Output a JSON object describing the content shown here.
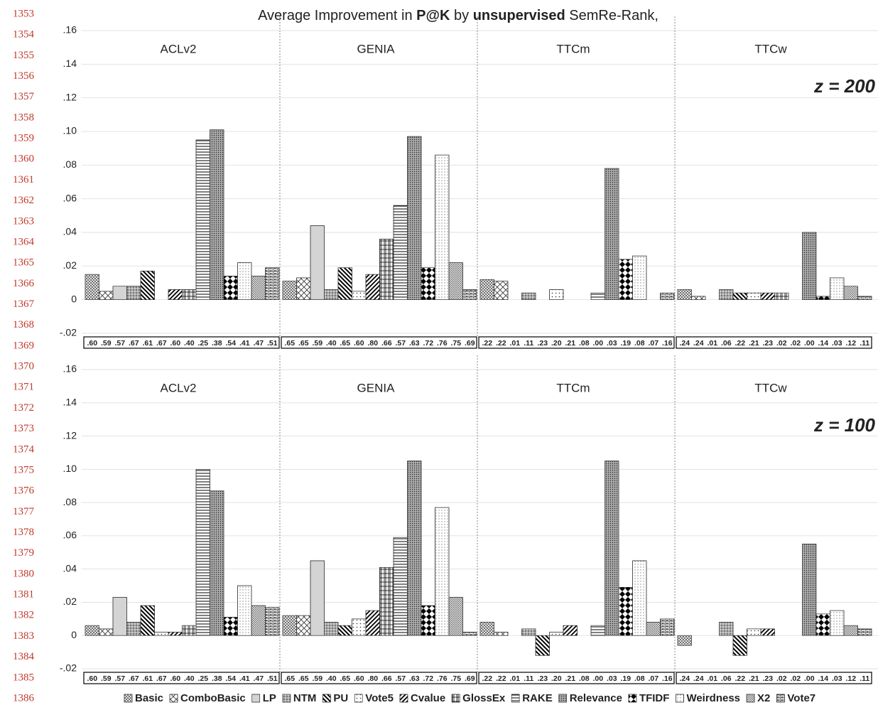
{
  "line_numbers": [
    1353,
    1354,
    1355,
    1356,
    1357,
    1358,
    1359,
    1360,
    1361,
    1362,
    1363,
    1364,
    1365,
    1366,
    1367,
    1368,
    1369,
    1370,
    1371,
    1372,
    1373,
    1374,
    1375,
    1376,
    1377,
    1378,
    1379,
    1380,
    1381,
    1382,
    1383,
    1384,
    1385,
    1386
  ],
  "chart_data": [
    {
      "type": "bar",
      "title": [
        "Average Improvement in ",
        "P@K",
        " by ",
        "unsupervised",
        " SemRe-Rank,"
      ],
      "subtitle": "z = 200",
      "categories": [
        "ACLv2",
        "GENIA",
        "TTCm",
        "TTCw"
      ],
      "series": [
        {
          "name": "Basic",
          "color": "#ffffff",
          "values": [
            0.015,
            0.011,
            0.012,
            0.006
          ]
        },
        {
          "name": "ComboBasic",
          "color": "#ffffff",
          "values": [
            0.005,
            0.013,
            0.011,
            0.002
          ]
        },
        {
          "name": "LP",
          "color": "#d4d4d4",
          "values": [
            0.008,
            0.044,
            0,
            0
          ]
        },
        {
          "name": "NTM",
          "color": "#ffffff",
          "values": [
            0.008,
            0.006,
            0.004,
            0.006
          ]
        },
        {
          "name": "PU",
          "color": "#ffffff",
          "values": [
            0.017,
            0.019,
            0,
            0.004
          ]
        },
        {
          "name": "Vote5",
          "color": "#ffffff",
          "values": [
            0,
            0.005,
            0.006,
            0.004
          ]
        },
        {
          "name": "Cvalue",
          "color": "#ffffff",
          "values": [
            0.006,
            0.015,
            0,
            0.004
          ]
        },
        {
          "name": "GlossEx",
          "color": "#ffffff",
          "values": [
            0.006,
            0.036,
            0,
            0.004
          ]
        },
        {
          "name": "RAKE",
          "color": "#ffffff",
          "values": [
            0.095,
            0.056,
            0.004,
            0
          ]
        },
        {
          "name": "Relevance",
          "color": "#ffffff",
          "values": [
            0.101,
            0.097,
            0.078,
            0.04
          ]
        },
        {
          "name": "TFIDF",
          "color": "#ffffff",
          "values": [
            0.014,
            0.019,
            0.024,
            0.002
          ]
        },
        {
          "name": "Weirdness",
          "color": "#ffffff",
          "values": [
            0.022,
            0.086,
            0.026,
            0.013
          ]
        },
        {
          "name": "X2",
          "color": "#ffffff",
          "values": [
            0.014,
            0.022,
            0,
            0.008
          ]
        },
        {
          "name": "Vote7",
          "color": "#ffffff",
          "values": [
            0.019,
            0.006,
            0.004,
            0.002
          ]
        }
      ],
      "baseline_labels": [
        [
          ".60",
          ".59",
          ".57",
          ".67",
          ".61",
          ".67",
          ".60",
          ".40",
          ".25",
          ".38",
          ".54",
          ".41",
          ".47",
          ".51"
        ],
        [
          ".65",
          ".65",
          ".59",
          ".40",
          ".65",
          ".60",
          ".80",
          ".66",
          ".57",
          ".63",
          ".72",
          ".76",
          ".75",
          ".69"
        ],
        [
          ".22",
          ".22",
          ".01",
          ".11",
          ".23",
          ".20",
          ".21",
          ".08",
          ".00",
          ".03",
          ".19",
          ".08",
          ".07",
          ".16"
        ],
        [
          ".24",
          ".24",
          ".01",
          ".06",
          ".22",
          ".21",
          ".23",
          ".02",
          ".02",
          ".00",
          ".14",
          ".03",
          ".12",
          ".11"
        ]
      ],
      "ylim": [
        -0.02,
        0.16
      ],
      "yticks": [
        {
          "value": -0.02,
          "label": "-.02"
        },
        0,
        {
          "value": 0.02,
          "label": ".02"
        },
        {
          "value": 0.04,
          "label": ".04"
        },
        {
          "value": 0.06,
          "label": ".06"
        },
        {
          "value": 0.08,
          "label": ".08"
        },
        {
          "value": 0.1,
          "label": ".10"
        },
        {
          "value": 0.12,
          "label": ".12"
        },
        {
          "value": 0.14,
          "label": ".14"
        },
        {
          "value": 0.16,
          "label": ".16"
        }
      ],
      "grid": true
    },
    {
      "type": "bar",
      "subtitle": "z = 100",
      "categories": [
        "ACLv2",
        "GENIA",
        "TTCm",
        "TTCw"
      ],
      "series": [
        {
          "color": "#ffffff",
          "values": [
            0.006,
            0.012,
            0.008,
            -0.006
          ]
        },
        {
          "color": "#ffffff",
          "values": [
            0.004,
            0.012,
            0.002,
            0
          ]
        },
        {
          "color": "#d4d4d4",
          "values": [
            0.023,
            0.045,
            0,
            0
          ]
        },
        {
          "color": "#ffffff",
          "values": [
            0.008,
            0.008,
            0.004,
            0.008
          ]
        },
        {
          "color": "#ffffff",
          "values": [
            0.018,
            0.006,
            -0.012,
            -0.012
          ]
        },
        {
          "color": "#ffffff",
          "values": [
            0.002,
            0.01,
            0.002,
            0.004
          ]
        },
        {
          "color": "#ffffff",
          "values": [
            0.002,
            0.015,
            0.006,
            0.004
          ]
        },
        {
          "color": "#ffffff",
          "values": [
            0.006,
            0.041,
            0,
            0
          ]
        },
        {
          "color": "#ffffff",
          "values": [
            0.1,
            0.059,
            0.006,
            0
          ]
        },
        {
          "color": "#ffffff",
          "values": [
            0.087,
            0.105,
            0.105,
            0.055
          ]
        },
        {
          "color": "#ffffff",
          "values": [
            0.011,
            0.018,
            0.029,
            0.013
          ]
        },
        {
          "color": "#ffffff",
          "values": [
            0.03,
            0.077,
            0.045,
            0.015
          ]
        },
        {
          "color": "#ffffff",
          "values": [
            0.018,
            0.023,
            0.008,
            0.006
          ]
        },
        {
          "color": "#ffffff",
          "values": [
            0.017,
            0.002,
            0.01,
            0.004
          ]
        }
      ],
      "baseline_labels": [
        [
          ".60",
          ".59",
          ".57",
          ".67",
          ".61",
          ".67",
          ".60",
          ".40",
          ".25",
          ".38",
          ".54",
          ".41",
          ".47",
          ".51"
        ],
        [
          ".65",
          ".65",
          ".59",
          ".40",
          ".65",
          ".60",
          ".80",
          ".66",
          ".57",
          ".63",
          ".72",
          ".76",
          ".75",
          ".69"
        ],
        [
          ".22",
          ".22",
          ".01",
          ".11",
          ".23",
          ".20",
          ".21",
          ".08",
          ".00",
          ".03",
          ".19",
          ".08",
          ".07",
          ".16"
        ],
        [
          ".24",
          ".24",
          ".01",
          ".06",
          ".22",
          ".21",
          ".23",
          ".02",
          ".02",
          ".00",
          ".14",
          ".03",
          ".12",
          ".11"
        ]
      ],
      "ylim": [
        -0.02,
        0.16
      ],
      "yticks": [
        {
          "value": -0.02,
          "label": "-.02"
        },
        0,
        {
          "value": 0.02,
          "label": ".02"
        },
        {
          "value": 0.04,
          "label": ".04"
        },
        {
          "value": 0.06,
          "label": ".06"
        },
        {
          "value": 0.08,
          "label": ".08"
        },
        {
          "value": 0.1,
          "label": ".10"
        },
        {
          "value": 0.12,
          "label": ".12"
        },
        {
          "value": 0.14,
          "label": ".14"
        },
        {
          "value": 0.16,
          "label": ".16"
        }
      ],
      "grid": true
    }
  ]
}
